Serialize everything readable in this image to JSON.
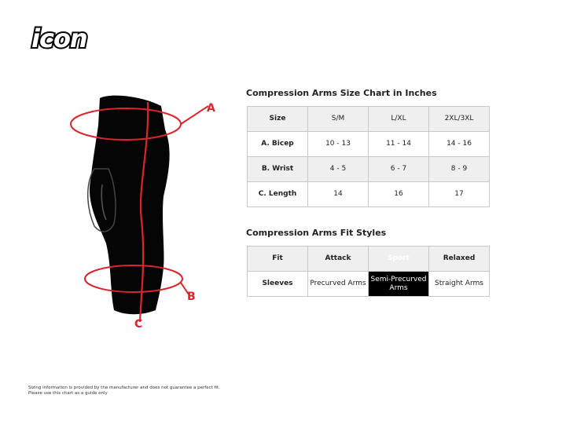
{
  "logo": {
    "text": "icon"
  },
  "diagram": {
    "labels": [
      "A",
      "B",
      "C"
    ],
    "accent": "#d9262c"
  },
  "size_chart": {
    "title": "Compression Arms Size Chart in Inches",
    "header": [
      "Size",
      "S/M",
      "L/XL",
      "2XL/3XL"
    ],
    "rows": [
      [
        "A. Bicep",
        "10 - 13",
        "11 - 14",
        "14 - 16"
      ],
      [
        "B. Wrist",
        "4 - 5",
        "6 - 7",
        "8 - 9"
      ],
      [
        "C. Length",
        "14",
        "16",
        "17"
      ]
    ]
  },
  "fit_chart": {
    "title": "Compression Arms Fit Styles",
    "header": [
      "Fit",
      "Attack",
      "Sport",
      "Relaxed"
    ],
    "row": [
      "Sleeves",
      "Precurved Arms",
      "Semi-Precurved Arms",
      "Straight Arms"
    ]
  },
  "disclaimer": [
    "Sizing information is provided by the manufacturer and does not guarantee a perfect fit.",
    "Please use this chart as a guide only"
  ]
}
